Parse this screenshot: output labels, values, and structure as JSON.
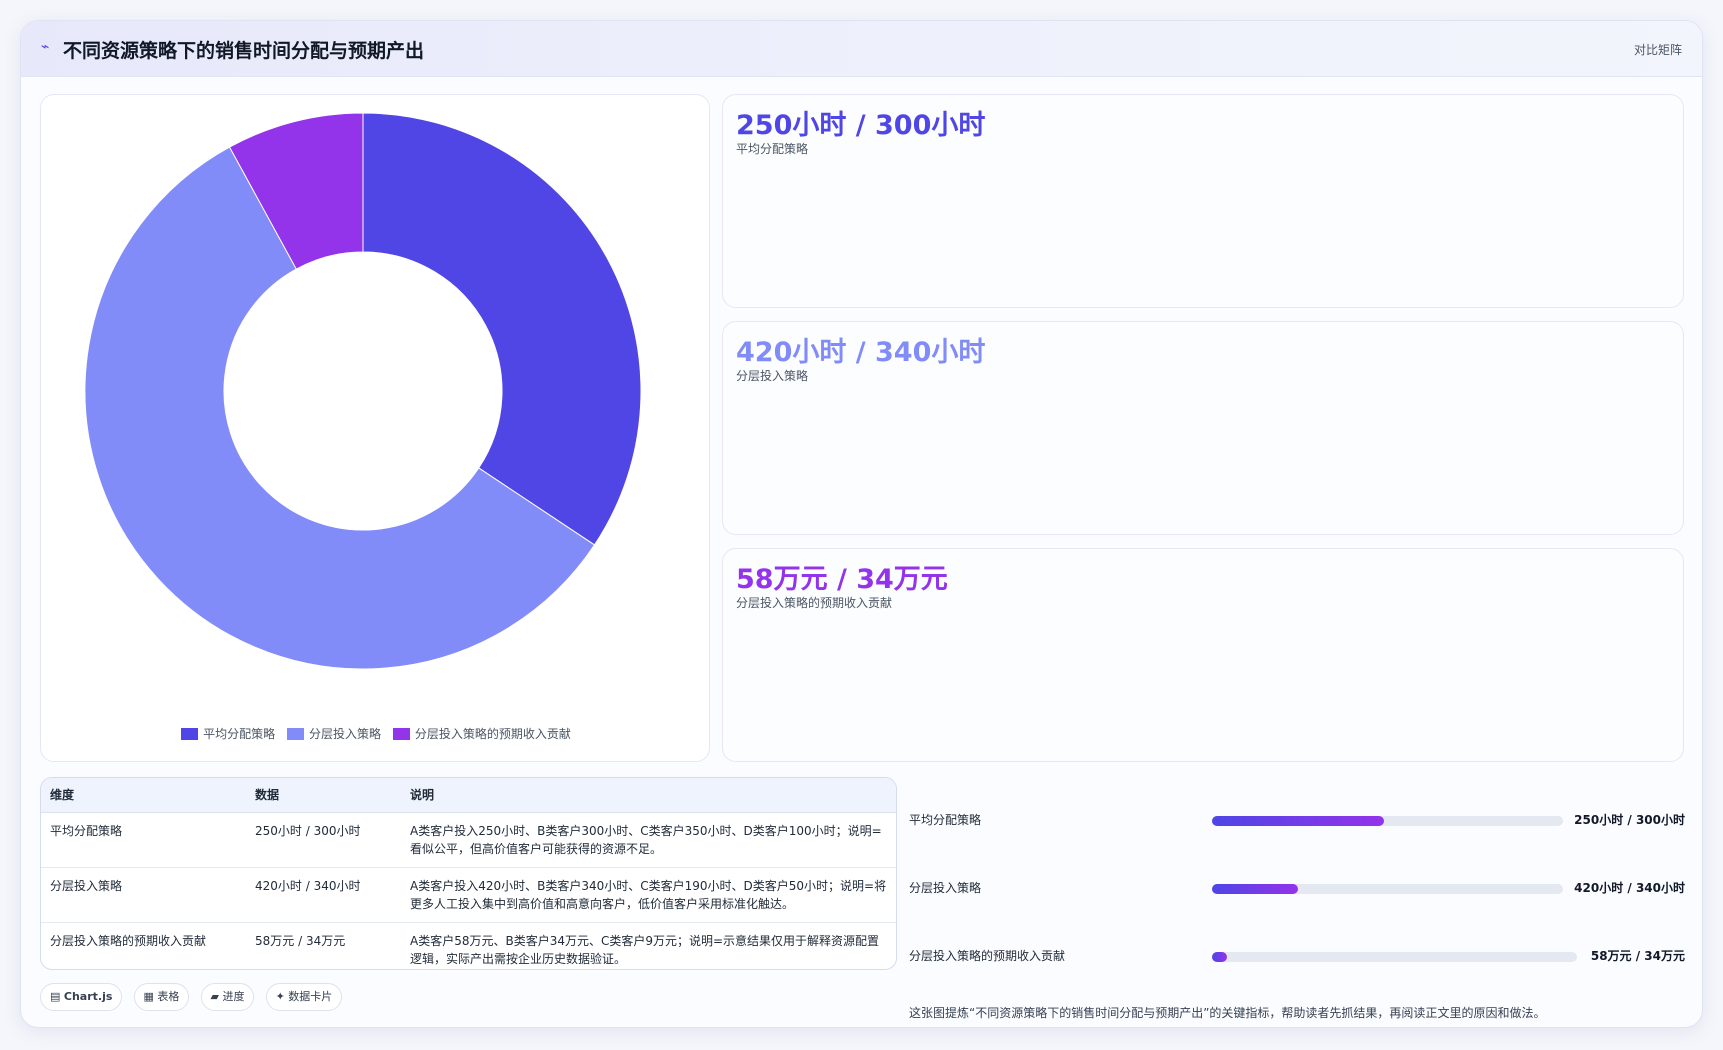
{
  "header": {
    "logo_icon": "wave-icon",
    "title": "不同资源策略下的销售时间分配与预期产出",
    "tag": "对比矩阵"
  },
  "colors": {
    "accent": "#4f46e5",
    "series": [
      "#4f46e5",
      "#818cf8",
      "#9333ea"
    ]
  },
  "chart_data": {
    "type": "pie",
    "variant": "doughnut",
    "categories": [
      "平均分配策略",
      "分层投入策略",
      "分层投入策略的预期收入贡献"
    ],
    "values": [
      250,
      420,
      58
    ],
    "legend_position": "bottom"
  },
  "kpis": [
    {
      "value": "250小时 / 300小时",
      "label": "平均分配策略",
      "color": "#4f46e5"
    },
    {
      "value": "420小时 / 340小时",
      "label": "分层投入策略",
      "color": "#818cf8"
    },
    {
      "value": "58万元 / 34万元",
      "label": "分层投入策略的预期收入贡献",
      "color": "#9333ea"
    }
  ],
  "table": {
    "headers": [
      "维度",
      "数据",
      "说明"
    ],
    "rows": [
      [
        "平均分配策略",
        "250小时 / 300小时",
        "A类客户投入250小时、B类客户300小时、C类客户350小时、D类客户100小时；说明=看似公平，但高价值客户可能获得的资源不足。"
      ],
      [
        "分层投入策略",
        "420小时 / 340小时",
        "A类客户投入420小时、B类客户340小时、C类客户190小时、D类客户50小时；说明=将更多人工投入集中到高价值和高意向客户，低价值客户采用标准化触达。"
      ],
      [
        "分层投入策略的预期收入贡献",
        "58万元 / 34万元",
        "A类客户58万元、B类客户34万元、C类客户9万元；说明=示意结果仅用于解释资源配置逻辑，实际产出需按企业历史数据验证。"
      ]
    ]
  },
  "chips": [
    {
      "icon": "▤",
      "label": "Chart.js"
    },
    {
      "icon": "▦",
      "label": "表格"
    },
    {
      "icon": "▰",
      "label": "进度"
    },
    {
      "icon": "✦",
      "label": "数据卡片"
    }
  ],
  "progress": [
    {
      "label": "平均分配策略",
      "value": "250小时 / 300小时",
      "fraction": 0.49
    },
    {
      "label": "分层投入策略",
      "value": "420小时 / 340小时",
      "fraction": 0.245
    },
    {
      "label": "分层投入策略的预期收入贡献",
      "value": "58万元 / 34万元",
      "fraction": 0.04
    }
  ],
  "note": "这张图提炼“不同资源策略下的销售时间分配与预期产出”的关键指标，帮助读者先抓结果，再阅读正文里的原因和做法。"
}
